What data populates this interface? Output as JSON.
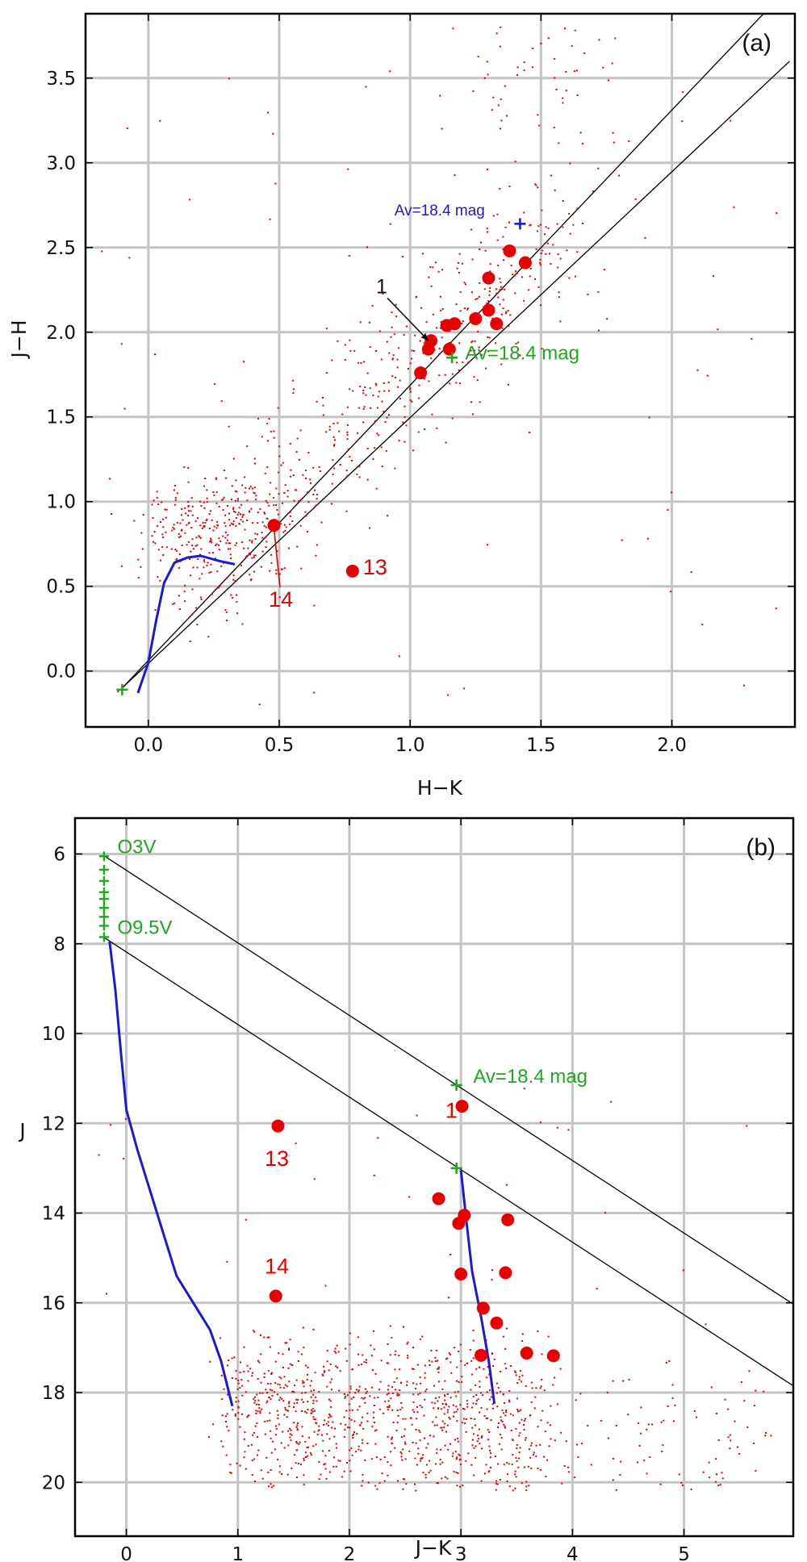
{
  "chart_data": [
    {
      "type": "scatter",
      "panel_label": "(a)",
      "xlabel": "H−K",
      "ylabel": "J−H",
      "xlim": [
        -0.24,
        2.47
      ],
      "ylim": [
        -0.33,
        3.88
      ],
      "xticks": [
        0.0,
        0.5,
        1.0,
        1.5,
        2.0
      ],
      "xtick_labels": [
        "0.0",
        "0.5",
        "1.0",
        "1.5",
        "2.0"
      ],
      "yticks": [
        0.0,
        0.5,
        1.0,
        1.5,
        2.0,
        2.5,
        3.0,
        3.5
      ],
      "ytick_labels": [
        "0.0",
        "0.5",
        "1.0",
        "1.5",
        "2.0",
        "2.5",
        "3.0",
        "3.5"
      ],
      "grid": true,
      "big_sources": [
        {
          "x": 1.08,
          "y": 1.95
        },
        {
          "x": 1.07,
          "y": 1.9
        },
        {
          "x": 1.14,
          "y": 2.04
        },
        {
          "x": 1.17,
          "y": 2.05
        },
        {
          "x": 1.15,
          "y": 1.9
        },
        {
          "x": 1.04,
          "y": 1.76
        },
        {
          "x": 1.25,
          "y": 2.08
        },
        {
          "x": 1.3,
          "y": 2.13
        },
        {
          "x": 1.3,
          "y": 2.32
        },
        {
          "x": 1.33,
          "y": 2.05
        },
        {
          "x": 1.38,
          "y": 2.48
        },
        {
          "x": 1.44,
          "y": 2.41
        },
        {
          "x": 0.48,
          "y": 0.86
        },
        {
          "x": 0.78,
          "y": 0.59
        }
      ],
      "reddening_lines": [
        {
          "from": [
            -0.1,
            -0.1
          ],
          "to": [
            2.35,
            3.88
          ]
        },
        {
          "from": [
            -0.1,
            -0.1
          ],
          "to": [
            2.45,
            3.6
          ]
        }
      ],
      "main_sequence": [
        {
          "x": -0.04,
          "y": -0.13
        },
        {
          "x": 0.0,
          "y": 0.05
        },
        {
          "x": 0.03,
          "y": 0.3
        },
        {
          "x": 0.06,
          "y": 0.52
        },
        {
          "x": 0.1,
          "y": 0.64
        },
        {
          "x": 0.15,
          "y": 0.67
        },
        {
          "x": 0.2,
          "y": 0.68
        },
        {
          "x": 0.27,
          "y": 0.65
        },
        {
          "x": 0.33,
          "y": 0.63
        }
      ],
      "markers": [
        {
          "name": "green-start",
          "x": -0.1,
          "y": -0.11,
          "color": "#1fa81f"
        },
        {
          "name": "green-av",
          "x": 1.16,
          "y": 1.85,
          "color": "#1fa81f"
        },
        {
          "name": "blue-av",
          "x": 1.42,
          "y": 2.64,
          "color": "#1a1ad6"
        }
      ],
      "annotations": [
        {
          "text": "Av=18.4 mag",
          "x": 1.21,
          "y": 1.84,
          "color": "green"
        },
        {
          "text": "Av=18.4 mag",
          "x": 0.94,
          "y": 2.69,
          "color": "blue"
        },
        {
          "text": "1",
          "x": 0.87,
          "y": 2.23,
          "color": "black",
          "arrow_to": [
            1.07,
            1.95
          ]
        },
        {
          "text": "13",
          "x": 0.82,
          "y": 0.57,
          "color": "red"
        },
        {
          "text": "14",
          "x": 0.46,
          "y": 0.38,
          "color": "red",
          "arrow_to": [
            0.48,
            0.84
          ]
        }
      ],
      "field_points": {
        "count": 900,
        "seed": 7
      },
      "colors": {
        "points": "#e00000",
        "ms": "#1a1ad6",
        "green": "#1fa81f",
        "blue": "#1a1ad6"
      }
    },
    {
      "type": "scatter",
      "panel_label": "(b)",
      "xlabel": "J−K",
      "ylabel": "J",
      "xlim": [
        -0.46,
        5.98
      ],
      "ylim": [
        21.2,
        5.2
      ],
      "xticks": [
        0,
        1,
        2,
        3,
        4,
        5
      ],
      "xtick_labels": [
        "0",
        "1",
        "2",
        "3",
        "4",
        "5"
      ],
      "yticks": [
        6,
        8,
        10,
        12,
        14,
        16,
        18,
        20
      ],
      "ytick_labels": [
        "6",
        "8",
        "10",
        "12",
        "14",
        "16",
        "18",
        "20"
      ],
      "grid": true,
      "big_sources": [
        {
          "x": 3.01,
          "y": 11.62
        },
        {
          "x": 1.36,
          "y": 12.06
        },
        {
          "x": 2.8,
          "y": 13.68
        },
        {
          "x": 3.03,
          "y": 14.05
        },
        {
          "x": 2.98,
          "y": 14.23
        },
        {
          "x": 3.42,
          "y": 14.15
        },
        {
          "x": 3.0,
          "y": 15.36
        },
        {
          "x": 3.4,
          "y": 15.33
        },
        {
          "x": 3.2,
          "y": 16.12
        },
        {
          "x": 3.32,
          "y": 16.45
        },
        {
          "x": 3.59,
          "y": 17.12
        },
        {
          "x": 3.83,
          "y": 17.18
        },
        {
          "x": 3.18,
          "y": 17.17
        },
        {
          "x": 1.34,
          "y": 15.85
        }
      ],
      "reddening_lines": [
        {
          "from": [
            -0.2,
            6.04
          ],
          "to": [
            5.98,
            16.03
          ]
        },
        {
          "from": [
            -0.2,
            7.86
          ],
          "to": [
            5.98,
            17.85
          ]
        }
      ],
      "main_sequence": [
        {
          "x": -0.15,
          "y": 7.95
        },
        {
          "x": -0.1,
          "y": 9.0
        },
        {
          "x": -0.05,
          "y": 10.4
        },
        {
          "x": 0.0,
          "y": 11.7
        },
        {
          "x": 0.1,
          "y": 12.6
        },
        {
          "x": 0.2,
          "y": 13.4
        },
        {
          "x": 0.3,
          "y": 14.2
        },
        {
          "x": 0.45,
          "y": 15.4
        },
        {
          "x": 0.6,
          "y": 16.0
        },
        {
          "x": 0.75,
          "y": 16.6
        },
        {
          "x": 0.85,
          "y": 17.3
        },
        {
          "x": 0.95,
          "y": 18.3
        }
      ],
      "cluster_sequence": [
        {
          "x": 3.0,
          "y": 13.05
        },
        {
          "x": 3.05,
          "y": 14.2
        },
        {
          "x": 3.1,
          "y": 15.3
        },
        {
          "x": 3.18,
          "y": 16.3
        },
        {
          "x": 3.25,
          "y": 17.3
        },
        {
          "x": 3.3,
          "y": 18.25
        }
      ],
      "ob_stars": [
        6.05,
        6.35,
        6.6,
        6.85,
        7.0,
        7.2,
        7.4,
        7.6,
        7.85
      ],
      "ob_x": -0.2,
      "markers": [
        {
          "name": "green-av-upper",
          "x": 2.96,
          "y": 11.15,
          "color": "#1fa81f"
        },
        {
          "name": "green-av-lower",
          "x": 2.96,
          "y": 13.0,
          "color": "#1fa81f"
        }
      ],
      "annotations": [
        {
          "text": "O3V",
          "x": -0.08,
          "y": 5.98,
          "color": "green"
        },
        {
          "text": "O9.5V",
          "x": -0.08,
          "y": 7.78,
          "color": "green"
        },
        {
          "text": "Av=18.4 mag",
          "x": 3.11,
          "y": 11.1,
          "color": "green"
        },
        {
          "text": "1",
          "x": 2.86,
          "y": 11.88,
          "color": "red"
        },
        {
          "text": "13",
          "x": 1.24,
          "y": 12.95,
          "color": "red"
        },
        {
          "text": "14",
          "x": 1.24,
          "y": 15.35,
          "color": "red"
        }
      ],
      "field_points": {
        "count": 1100,
        "seed": 23
      },
      "colors": {
        "points": "#e00000",
        "ms": "#1a1ad6",
        "green": "#1fa81f"
      }
    }
  ]
}
